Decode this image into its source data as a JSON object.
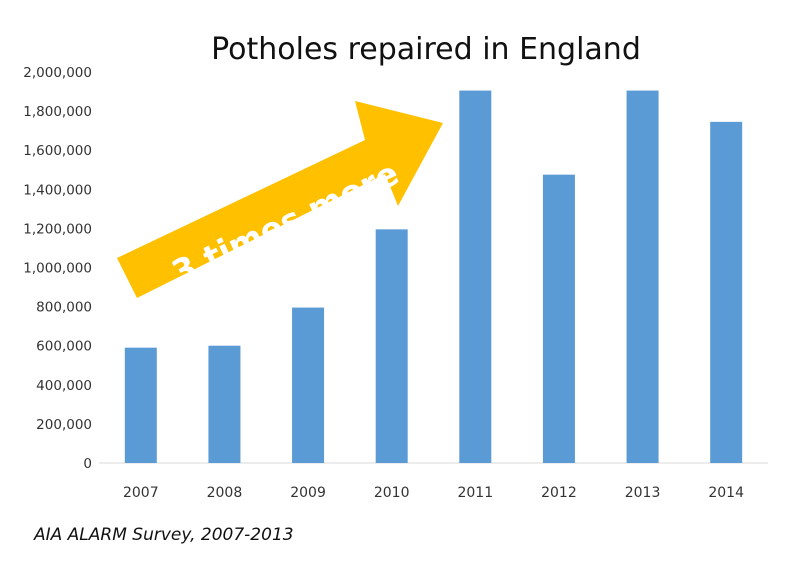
{
  "chart_data": {
    "type": "bar",
    "title": "Potholes repaired in England",
    "categories": [
      "2007",
      "2008",
      "2009",
      "2010",
      "2011",
      "2012",
      "2013",
      "2014"
    ],
    "values": [
      590000,
      600000,
      795000,
      1195000,
      1905000,
      1475000,
      1905000,
      1745000
    ],
    "ylim": [
      0,
      2000000
    ],
    "yticks": [
      "0",
      "200,000",
      "400,000",
      "600,000",
      "800,000",
      "1,000,000",
      "1,200,000",
      "1,400,000",
      "1,600,000",
      "1,800,000",
      "2,000,000"
    ],
    "xlabel": "",
    "ylabel": "",
    "grid": false,
    "legend": "none",
    "bar_color": "#5b9bd5",
    "annotation": {
      "text": "3 times more",
      "color": "#ffc000"
    },
    "source": "AIA ALARM Survey, 2007-2013"
  }
}
